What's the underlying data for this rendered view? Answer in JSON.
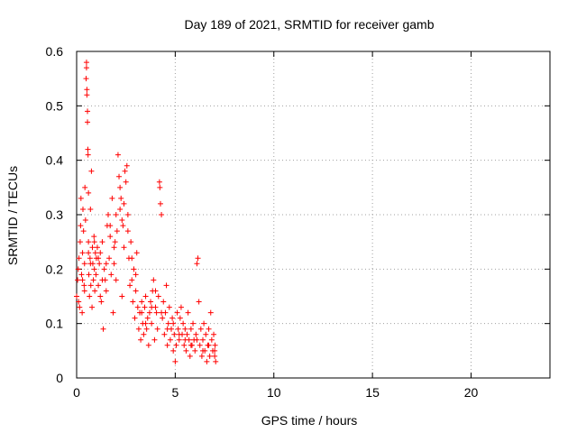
{
  "chart_data": {
    "type": "scatter",
    "title": "Day 189 of 2021, SRMTID for receiver gamb",
    "xlabel": "GPS time / hours",
    "ylabel": "SRMTID / TECUs",
    "xlim": [
      0,
      24
    ],
    "ylim": [
      0,
      0.6
    ],
    "xticks": [
      0,
      5,
      10,
      15,
      20
    ],
    "yticks": [
      0,
      0.1,
      0.2,
      0.3,
      0.4,
      0.5,
      0.6
    ],
    "xtick_labels": [
      "0",
      "5",
      "10",
      "15",
      "20"
    ],
    "ytick_labels": [
      "0",
      "0.1",
      "0.2",
      "0.3",
      "0.4",
      "0.5",
      "0.6"
    ],
    "grid": true,
    "marker": "+",
    "color": "#ff0000",
    "series": [
      {
        "name": "gamb",
        "points": [
          [
            0.0,
            0.15
          ],
          [
            0.05,
            0.18
          ],
          [
            0.08,
            0.2
          ],
          [
            0.1,
            0.14
          ],
          [
            0.12,
            0.22
          ],
          [
            0.15,
            0.13
          ],
          [
            0.18,
            0.25
          ],
          [
            0.2,
            0.28
          ],
          [
            0.22,
            0.33
          ],
          [
            0.25,
            0.19
          ],
          [
            0.28,
            0.12
          ],
          [
            0.3,
            0.23
          ],
          [
            0.32,
            0.31
          ],
          [
            0.35,
            0.27
          ],
          [
            0.38,
            0.17
          ],
          [
            0.4,
            0.21
          ],
          [
            0.42,
            0.35
          ],
          [
            0.45,
            0.29
          ],
          [
            0.48,
            0.55
          ],
          [
            0.5,
            0.57
          ],
          [
            0.5,
            0.58
          ],
          [
            0.52,
            0.52
          ],
          [
            0.52,
            0.53
          ],
          [
            0.55,
            0.49
          ],
          [
            0.55,
            0.47
          ],
          [
            0.57,
            0.42
          ],
          [
            0.58,
            0.41
          ],
          [
            0.6,
            0.34
          ],
          [
            0.6,
            0.25
          ],
          [
            0.62,
            0.19
          ],
          [
            0.65,
            0.15
          ],
          [
            0.68,
            0.22
          ],
          [
            0.7,
            0.31
          ],
          [
            0.72,
            0.17
          ],
          [
            0.75,
            0.38
          ],
          [
            0.78,
            0.13
          ],
          [
            0.8,
            0.24
          ],
          [
            0.82,
            0.21
          ],
          [
            0.85,
            0.18
          ],
          [
            0.88,
            0.26
          ],
          [
            0.9,
            0.2
          ],
          [
            0.92,
            0.16
          ],
          [
            0.95,
            0.23
          ],
          [
            0.98,
            0.19
          ],
          [
            1.0,
            0.22
          ],
          [
            1.05,
            0.24
          ],
          [
            1.1,
            0.17
          ],
          [
            1.15,
            0.21
          ],
          [
            1.2,
            0.23
          ],
          [
            1.25,
            0.14
          ],
          [
            1.3,
            0.25
          ],
          [
            1.35,
            0.09
          ],
          [
            1.4,
            0.2
          ],
          [
            1.45,
            0.18
          ],
          [
            1.5,
            0.16
          ],
          [
            1.55,
            0.28
          ],
          [
            1.6,
            0.3
          ],
          [
            1.65,
            0.22
          ],
          [
            1.7,
            0.26
          ],
          [
            1.75,
            0.19
          ],
          [
            1.8,
            0.33
          ],
          [
            1.85,
            0.12
          ],
          [
            1.9,
            0.21
          ],
          [
            1.95,
            0.25
          ],
          [
            2.0,
            0.18
          ],
          [
            2.05,
            0.27
          ],
          [
            2.1,
            0.41
          ],
          [
            2.15,
            0.37
          ],
          [
            2.2,
            0.31
          ],
          [
            2.25,
            0.33
          ],
          [
            2.3,
            0.15
          ],
          [
            2.35,
            0.28
          ],
          [
            2.4,
            0.24
          ],
          [
            2.45,
            0.38
          ],
          [
            2.5,
            0.36
          ],
          [
            2.55,
            0.39
          ],
          [
            2.6,
            0.3
          ],
          [
            2.65,
            0.22
          ],
          [
            2.7,
            0.17
          ],
          [
            2.75,
            0.25
          ],
          [
            2.8,
            0.18
          ],
          [
            2.85,
            0.14
          ],
          [
            2.9,
            0.2
          ],
          [
            2.95,
            0.11
          ],
          [
            3.0,
            0.16
          ],
          [
            3.05,
            0.23
          ],
          [
            3.1,
            0.13
          ],
          [
            3.15,
            0.09
          ],
          [
            3.2,
            0.12
          ],
          [
            3.25,
            0.07
          ],
          [
            3.3,
            0.14
          ],
          [
            3.35,
            0.1
          ],
          [
            3.4,
            0.08
          ],
          [
            3.45,
            0.13
          ],
          [
            3.5,
            0.15
          ],
          [
            3.55,
            0.09
          ],
          [
            3.6,
            0.11
          ],
          [
            3.65,
            0.06
          ],
          [
            3.7,
            0.12
          ],
          [
            3.75,
            0.14
          ],
          [
            3.8,
            0.1
          ],
          [
            3.85,
            0.16
          ],
          [
            3.9,
            0.18
          ],
          [
            3.95,
            0.07
          ],
          [
            4.0,
            0.13
          ],
          [
            4.05,
            0.12
          ],
          [
            4.1,
            0.09
          ],
          [
            4.15,
            0.15
          ],
          [
            4.2,
            0.36
          ],
          [
            4.22,
            0.35
          ],
          [
            4.25,
            0.32
          ],
          [
            4.3,
            0.3
          ],
          [
            4.35,
            0.11
          ],
          [
            4.4,
            0.14
          ],
          [
            4.45,
            0.08
          ],
          [
            4.5,
            0.12
          ],
          [
            4.55,
            0.17
          ],
          [
            4.6,
            0.06
          ],
          [
            4.65,
            0.1
          ],
          [
            4.7,
            0.13
          ],
          [
            4.75,
            0.07
          ],
          [
            4.8,
            0.09
          ],
          [
            4.85,
            0.11
          ],
          [
            4.9,
            0.05
          ],
          [
            4.95,
            0.08
          ],
          [
            5.0,
            0.03
          ],
          [
            5.05,
            0.06
          ],
          [
            5.1,
            0.12
          ],
          [
            5.15,
            0.09
          ],
          [
            5.2,
            0.07
          ],
          [
            5.25,
            0.11
          ],
          [
            5.3,
            0.13
          ],
          [
            5.35,
            0.08
          ],
          [
            5.4,
            0.1
          ],
          [
            5.45,
            0.06
          ],
          [
            5.5,
            0.09
          ],
          [
            5.55,
            0.05
          ],
          [
            5.6,
            0.08
          ],
          [
            5.65,
            0.12
          ],
          [
            5.7,
            0.07
          ],
          [
            5.75,
            0.04
          ],
          [
            5.8,
            0.09
          ],
          [
            5.85,
            0.06
          ],
          [
            5.9,
            0.1
          ],
          [
            5.95,
            0.07
          ],
          [
            6.0,
            0.05
          ],
          [
            6.05,
            0.08
          ],
          [
            6.1,
            0.21
          ],
          [
            6.15,
            0.22
          ],
          [
            6.2,
            0.14
          ],
          [
            6.25,
            0.06
          ],
          [
            6.3,
            0.09
          ],
          [
            6.35,
            0.04
          ],
          [
            6.4,
            0.07
          ],
          [
            6.45,
            0.1
          ],
          [
            6.5,
            0.05
          ],
          [
            6.55,
            0.08
          ],
          [
            6.6,
            0.03
          ],
          [
            6.65,
            0.06
          ],
          [
            6.7,
            0.09
          ],
          [
            6.75,
            0.04
          ],
          [
            6.8,
            0.12
          ],
          [
            6.85,
            0.07
          ],
          [
            6.9,
            0.05
          ],
          [
            6.95,
            0.08
          ],
          [
            7.0,
            0.04
          ],
          [
            7.02,
            0.06
          ],
          [
            7.05,
            0.03
          ],
          [
            0.3,
            0.18
          ],
          [
            0.4,
            0.16
          ],
          [
            0.6,
            0.23
          ],
          [
            0.7,
            0.21
          ],
          [
            0.9,
            0.25
          ],
          [
            1.1,
            0.22
          ],
          [
            1.3,
            0.18
          ],
          [
            1.5,
            0.21
          ],
          [
            1.7,
            0.28
          ],
          [
            1.9,
            0.24
          ],
          [
            2.2,
            0.35
          ],
          [
            2.4,
            0.32
          ],
          [
            2.6,
            0.27
          ],
          [
            2.8,
            0.22
          ],
          [
            3.0,
            0.19
          ],
          [
            3.3,
            0.12
          ],
          [
            3.5,
            0.1
          ],
          [
            3.8,
            0.13
          ],
          [
            4.0,
            0.16
          ],
          [
            4.3,
            0.12
          ],
          [
            4.6,
            0.09
          ],
          [
            4.9,
            0.1
          ],
          [
            5.2,
            0.08
          ],
          [
            5.5,
            0.07
          ],
          [
            5.8,
            0.06
          ],
          [
            6.1,
            0.07
          ],
          [
            6.4,
            0.05
          ],
          [
            6.7,
            0.06
          ],
          [
            7.0,
            0.05
          ],
          [
            2.0,
            0.3
          ],
          [
            2.3,
            0.29
          ],
          [
            1.2,
            0.15
          ]
        ]
      }
    ]
  }
}
